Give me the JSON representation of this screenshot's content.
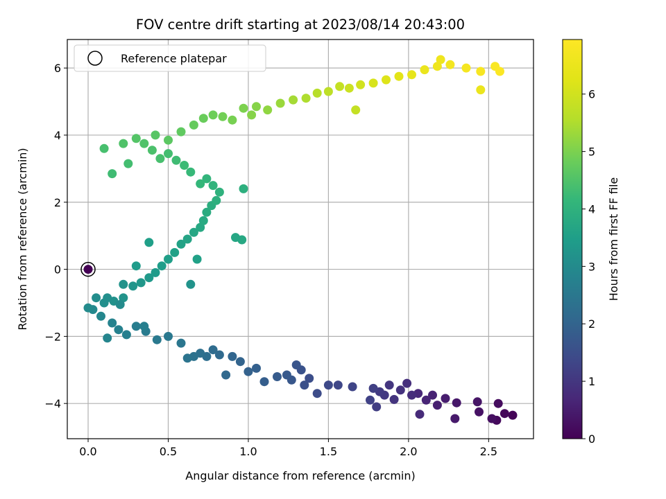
{
  "chart_data": {
    "type": "scatter",
    "title": "FOV centre drift starting at 2023/08/14 20:43:00",
    "xlabel": "Angular distance from reference (arcmin)",
    "ylabel": "Rotation from reference (arcmin)",
    "xlim": [
      -0.13,
      2.78
    ],
    "ylim": [
      -5.05,
      6.85
    ],
    "xticks": [
      "0.0",
      "0.5",
      "1.0",
      "1.5",
      "2.0",
      "2.5"
    ],
    "yticks": [
      "−4",
      "−2",
      "0",
      "2",
      "4",
      "6"
    ],
    "xtick_values": [
      0,
      0.5,
      1.0,
      1.5,
      2.0,
      2.5
    ],
    "ytick_values": [
      -4,
      -2,
      0,
      2,
      4,
      6
    ],
    "grid": true,
    "legend": {
      "position": "top-left",
      "entries": [
        "Reference platepar"
      ]
    },
    "reference_point": {
      "x": 0.0,
      "y": 0.0,
      "hours": 0.0
    },
    "colorbar": {
      "label": "Hours from first FF file",
      "range": [
        0,
        6.95
      ],
      "ticks": [
        "0",
        "1",
        "2",
        "3",
        "4",
        "5",
        "6"
      ],
      "tick_values": [
        0,
        1,
        2,
        3,
        4,
        5,
        6
      ],
      "colormap": "viridis"
    },
    "series": [
      {
        "points": [
          [
            2.65,
            -4.35,
            0.05
          ],
          [
            2.6,
            -4.3,
            0.1
          ],
          [
            2.55,
            -4.5,
            0.15
          ],
          [
            2.56,
            -4.0,
            0.2
          ],
          [
            2.52,
            -4.45,
            0.25
          ],
          [
            2.44,
            -4.25,
            0.3
          ],
          [
            2.43,
            -3.95,
            0.35
          ],
          [
            2.3,
            -3.98,
            0.4
          ],
          [
            2.29,
            -4.45,
            0.45
          ],
          [
            2.23,
            -3.85,
            0.5
          ],
          [
            2.18,
            -4.05,
            0.55
          ],
          [
            2.15,
            -3.75,
            0.6
          ],
          [
            2.11,
            -3.9,
            0.65
          ],
          [
            2.06,
            -3.7,
            0.7
          ],
          [
            2.07,
            -4.32,
            0.75
          ],
          [
            2.02,
            -3.75,
            0.8
          ],
          [
            1.99,
            -3.4,
            0.85
          ],
          [
            1.95,
            -3.6,
            0.9
          ],
          [
            1.91,
            -3.88,
            0.95
          ],
          [
            1.88,
            -3.45,
            1.0
          ],
          [
            1.85,
            -3.75,
            1.05
          ],
          [
            1.82,
            -3.65,
            1.1
          ],
          [
            1.8,
            -4.1,
            1.15
          ],
          [
            1.78,
            -3.55,
            1.2
          ],
          [
            1.76,
            -3.9,
            1.25
          ],
          [
            1.65,
            -3.5,
            1.3
          ],
          [
            1.56,
            -3.45,
            1.35
          ],
          [
            1.5,
            -3.45,
            1.4
          ],
          [
            1.43,
            -3.7,
            1.45
          ],
          [
            1.38,
            -3.25,
            1.5
          ],
          [
            1.35,
            -3.45,
            1.55
          ],
          [
            1.33,
            -3.0,
            1.6
          ],
          [
            1.3,
            -2.85,
            1.65
          ],
          [
            1.27,
            -3.3,
            1.7
          ],
          [
            1.24,
            -3.15,
            1.75
          ],
          [
            1.18,
            -3.2,
            1.8
          ],
          [
            1.1,
            -3.35,
            1.85
          ],
          [
            1.05,
            -2.95,
            1.9
          ],
          [
            1.0,
            -3.05,
            1.95
          ],
          [
            0.95,
            -2.75,
            2.0
          ],
          [
            0.9,
            -2.6,
            2.05
          ],
          [
            0.86,
            -3.15,
            2.1
          ],
          [
            0.82,
            -2.55,
            2.15
          ],
          [
            0.78,
            -2.4,
            2.2
          ],
          [
            0.74,
            -2.6,
            2.25
          ],
          [
            0.7,
            -2.5,
            2.3
          ],
          [
            0.66,
            -2.6,
            2.35
          ],
          [
            0.62,
            -2.65,
            2.4
          ],
          [
            0.58,
            -2.2,
            2.45
          ],
          [
            0.5,
            -2.0,
            2.5
          ],
          [
            0.43,
            -2.1,
            2.55
          ],
          [
            0.36,
            -1.85,
            2.6
          ],
          [
            0.3,
            -1.7,
            2.65
          ],
          [
            0.24,
            -1.95,
            2.7
          ],
          [
            0.19,
            -1.8,
            2.75
          ],
          [
            0.15,
            -1.6,
            2.8
          ],
          [
            0.12,
            -2.05,
            2.85
          ],
          [
            0.08,
            -1.4,
            2.9
          ],
          [
            0.03,
            -1.2,
            2.95
          ],
          [
            0.0,
            -1.15,
            3.0
          ],
          [
            0.05,
            -0.85,
            3.05
          ],
          [
            0.1,
            -1.0,
            3.1
          ],
          [
            0.16,
            -0.95,
            3.15
          ],
          [
            0.22,
            -0.85,
            3.2
          ],
          [
            0.28,
            -0.5,
            3.25
          ],
          [
            0.33,
            -0.4,
            3.3
          ],
          [
            0.38,
            -0.25,
            3.35
          ],
          [
            0.42,
            -0.1,
            3.4
          ],
          [
            0.46,
            0.1,
            3.45
          ],
          [
            0.5,
            0.3,
            3.5
          ],
          [
            0.54,
            0.5,
            3.55
          ],
          [
            0.58,
            0.75,
            3.6
          ],
          [
            0.62,
            0.9,
            3.65
          ],
          [
            0.66,
            1.1,
            3.7
          ],
          [
            0.7,
            1.25,
            3.75
          ],
          [
            0.72,
            1.45,
            3.8
          ],
          [
            0.74,
            1.7,
            3.85
          ],
          [
            0.77,
            1.9,
            3.9
          ],
          [
            0.8,
            2.05,
            3.95
          ],
          [
            0.82,
            2.3,
            4.0
          ],
          [
            0.78,
            2.5,
            4.05
          ],
          [
            0.74,
            2.7,
            4.1
          ],
          [
            0.7,
            2.55,
            4.15
          ],
          [
            0.64,
            2.9,
            4.2
          ],
          [
            0.6,
            3.1,
            4.25
          ],
          [
            0.55,
            3.25,
            4.3
          ],
          [
            0.5,
            3.45,
            4.35
          ],
          [
            0.45,
            3.3,
            4.4
          ],
          [
            0.4,
            3.55,
            4.45
          ],
          [
            0.35,
            3.75,
            4.5
          ],
          [
            0.3,
            3.9,
            4.55
          ],
          [
            0.42,
            4.0,
            4.6
          ],
          [
            0.5,
            3.85,
            4.65
          ],
          [
            0.58,
            4.1,
            4.7
          ],
          [
            0.66,
            4.3,
            4.75
          ],
          [
            0.72,
            4.5,
            4.8
          ],
          [
            0.78,
            4.6,
            4.85
          ],
          [
            0.84,
            4.55,
            4.9
          ],
          [
            0.9,
            4.45,
            4.95
          ],
          [
            0.97,
            4.8,
            5.0
          ],
          [
            1.05,
            4.85,
            5.1
          ],
          [
            1.12,
            4.75,
            5.2
          ],
          [
            1.2,
            4.95,
            5.3
          ],
          [
            1.28,
            5.05,
            5.4
          ],
          [
            1.36,
            5.1,
            5.5
          ],
          [
            1.43,
            5.25,
            5.6
          ],
          [
            1.5,
            5.3,
            5.7
          ],
          [
            1.57,
            5.45,
            5.8
          ],
          [
            1.63,
            5.4,
            5.9
          ],
          [
            1.7,
            5.5,
            6.0
          ],
          [
            1.78,
            5.55,
            6.1
          ],
          [
            1.86,
            5.65,
            6.2
          ],
          [
            1.94,
            5.75,
            6.3
          ],
          [
            2.02,
            5.8,
            6.4
          ],
          [
            2.1,
            5.95,
            6.5
          ],
          [
            2.18,
            6.05,
            6.6
          ],
          [
            2.26,
            6.1,
            6.7
          ],
          [
            2.36,
            6.0,
            6.75
          ],
          [
            2.45,
            5.9,
            6.8
          ],
          [
            2.54,
            6.05,
            6.85
          ],
          [
            2.57,
            5.9,
            6.9
          ],
          [
            2.2,
            6.25,
            6.6
          ],
          [
            2.45,
            5.35,
            6.5
          ],
          [
            1.67,
            4.75,
            5.8
          ],
          [
            1.02,
            4.6,
            5.1
          ],
          [
            0.22,
            3.75,
            4.5
          ],
          [
            0.15,
            2.85,
            4.3
          ],
          [
            0.1,
            3.6,
            4.4
          ],
          [
            0.25,
            3.15,
            4.35
          ],
          [
            0.97,
            2.4,
            3.95
          ],
          [
            0.96,
            0.88,
            3.75
          ],
          [
            0.92,
            0.95,
            3.7
          ],
          [
            0.38,
            0.8,
            3.5
          ],
          [
            0.3,
            0.1,
            3.4
          ],
          [
            0.22,
            -0.45,
            3.2
          ],
          [
            0.2,
            -1.05,
            3.0
          ],
          [
            0.35,
            -1.7,
            2.7
          ],
          [
            0.12,
            -0.85,
            3.1
          ],
          [
            0.64,
            -0.45,
            3.2
          ],
          [
            0.68,
            0.3,
            3.55
          ]
        ]
      }
    ]
  }
}
